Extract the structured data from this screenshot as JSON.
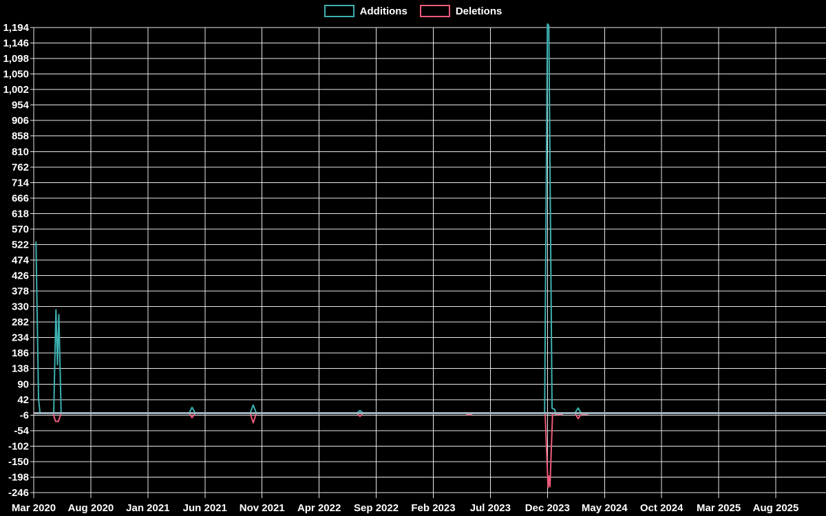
{
  "legend": {
    "items": [
      {
        "label": "Additions",
        "color": "#3db1b1"
      },
      {
        "label": "Deletions",
        "color": "#ef5b7b"
      }
    ]
  },
  "chart_data": {
    "type": "line",
    "title": "",
    "xlabel": "",
    "ylabel": "",
    "background_color": "#000000",
    "grid": true,
    "grid_color": "#e9e9e9",
    "text_color": "#ffffff",
    "zero_line_color": "#9fb3bd",
    "legend_position": "top-center",
    "x_unit": "months since Mar 2020",
    "xlim_months": [
      0,
      69.4
    ],
    "ylim": [
      -262,
      1215
    ],
    "x_ticks": [
      {
        "label": "Mar 2020",
        "m": 0
      },
      {
        "label": "Aug 2020",
        "m": 5
      },
      {
        "label": "Jan 2021",
        "m": 10
      },
      {
        "label": "Jun 2021",
        "m": 15
      },
      {
        "label": "Nov 2021",
        "m": 20
      },
      {
        "label": "Apr 2022",
        "m": 25
      },
      {
        "label": "Sep 2022",
        "m": 30
      },
      {
        "label": "Feb 2023",
        "m": 35
      },
      {
        "label": "Jul 2023",
        "m": 40
      },
      {
        "label": "Dec 2023",
        "m": 45
      },
      {
        "label": "May 2024",
        "m": 50
      },
      {
        "label": "Oct 2024",
        "m": 55
      },
      {
        "label": "Mar 2025",
        "m": 60
      },
      {
        "label": "Aug 2025",
        "m": 65
      }
    ],
    "y_ticks": [
      {
        "label": "1,194",
        "value": 1194
      },
      {
        "label": "1,146",
        "value": 1146
      },
      {
        "label": "1,098",
        "value": 1098
      },
      {
        "label": "1,050",
        "value": 1050
      },
      {
        "label": "1,002",
        "value": 1002
      },
      {
        "label": "954",
        "value": 954
      },
      {
        "label": "906",
        "value": 906
      },
      {
        "label": "858",
        "value": 858
      },
      {
        "label": "810",
        "value": 810
      },
      {
        "label": "762",
        "value": 762
      },
      {
        "label": "714",
        "value": 714
      },
      {
        "label": "666",
        "value": 666
      },
      {
        "label": "618",
        "value": 618
      },
      {
        "label": "570",
        "value": 570
      },
      {
        "label": "522",
        "value": 522
      },
      {
        "label": "474",
        "value": 474
      },
      {
        "label": "426",
        "value": 426
      },
      {
        "label": "378",
        "value": 378
      },
      {
        "label": "330",
        "value": 330
      },
      {
        "label": "282",
        "value": 282
      },
      {
        "label": "234",
        "value": 234
      },
      {
        "label": "186",
        "value": 186
      },
      {
        "label": "138",
        "value": 138
      },
      {
        "label": "90",
        "value": 90
      },
      {
        "label": "42",
        "value": 42
      },
      {
        "label": "-6",
        "value": -6
      },
      {
        "label": "-54",
        "value": -54
      },
      {
        "label": "-102",
        "value": -102
      },
      {
        "label": "-150",
        "value": -150
      },
      {
        "label": "-198",
        "value": -198
      },
      {
        "label": "-246",
        "value": -246
      }
    ],
    "series": [
      {
        "name": "Deletions",
        "color": "#ef5b7b",
        "points": [
          [
            0,
            0
          ],
          [
            1.7,
            0
          ],
          [
            1.9,
            -25
          ],
          [
            2.15,
            -26
          ],
          [
            2.4,
            0
          ],
          [
            13.6,
            0
          ],
          [
            13.87,
            -14
          ],
          [
            14.15,
            0
          ],
          [
            18.95,
            0
          ],
          [
            19.23,
            -30
          ],
          [
            19.5,
            0
          ],
          [
            28.3,
            0
          ],
          [
            28.58,
            -10
          ],
          [
            28.85,
            0
          ],
          [
            37.85,
            0
          ],
          [
            37.95,
            -4
          ],
          [
            38.35,
            -4
          ],
          [
            38.45,
            0
          ],
          [
            44.8,
            0
          ],
          [
            45.05,
            -230
          ],
          [
            45.14,
            -195
          ],
          [
            45.22,
            -228
          ],
          [
            45.45,
            0
          ],
          [
            45.85,
            -4
          ],
          [
            46.28,
            -4
          ],
          [
            46.38,
            0
          ],
          [
            47.4,
            0
          ],
          [
            47.69,
            -17
          ],
          [
            47.95,
            -3
          ],
          [
            48.52,
            -3
          ],
          [
            48.6,
            0
          ],
          [
            69.4,
            0
          ]
        ]
      },
      {
        "name": "Additions",
        "color": "#3db1b1",
        "points": [
          [
            0.2,
            530
          ],
          [
            0.42,
            45
          ],
          [
            0.55,
            0
          ],
          [
            1.75,
            0
          ],
          [
            1.95,
            320
          ],
          [
            2.08,
            150
          ],
          [
            2.2,
            305
          ],
          [
            2.4,
            0
          ],
          [
            13.6,
            0
          ],
          [
            13.87,
            18
          ],
          [
            14.15,
            0
          ],
          [
            18.95,
            0
          ],
          [
            19.23,
            25
          ],
          [
            19.5,
            0
          ],
          [
            28.3,
            0
          ],
          [
            28.58,
            8
          ],
          [
            28.85,
            0
          ],
          [
            44.75,
            0
          ],
          [
            45.0,
            1205
          ],
          [
            45.12,
            1200
          ],
          [
            45.4,
            15
          ],
          [
            45.62,
            12
          ],
          [
            45.72,
            0
          ],
          [
            47.4,
            0
          ],
          [
            47.69,
            16
          ],
          [
            47.95,
            0
          ],
          [
            69.4,
            0
          ]
        ]
      }
    ]
  }
}
